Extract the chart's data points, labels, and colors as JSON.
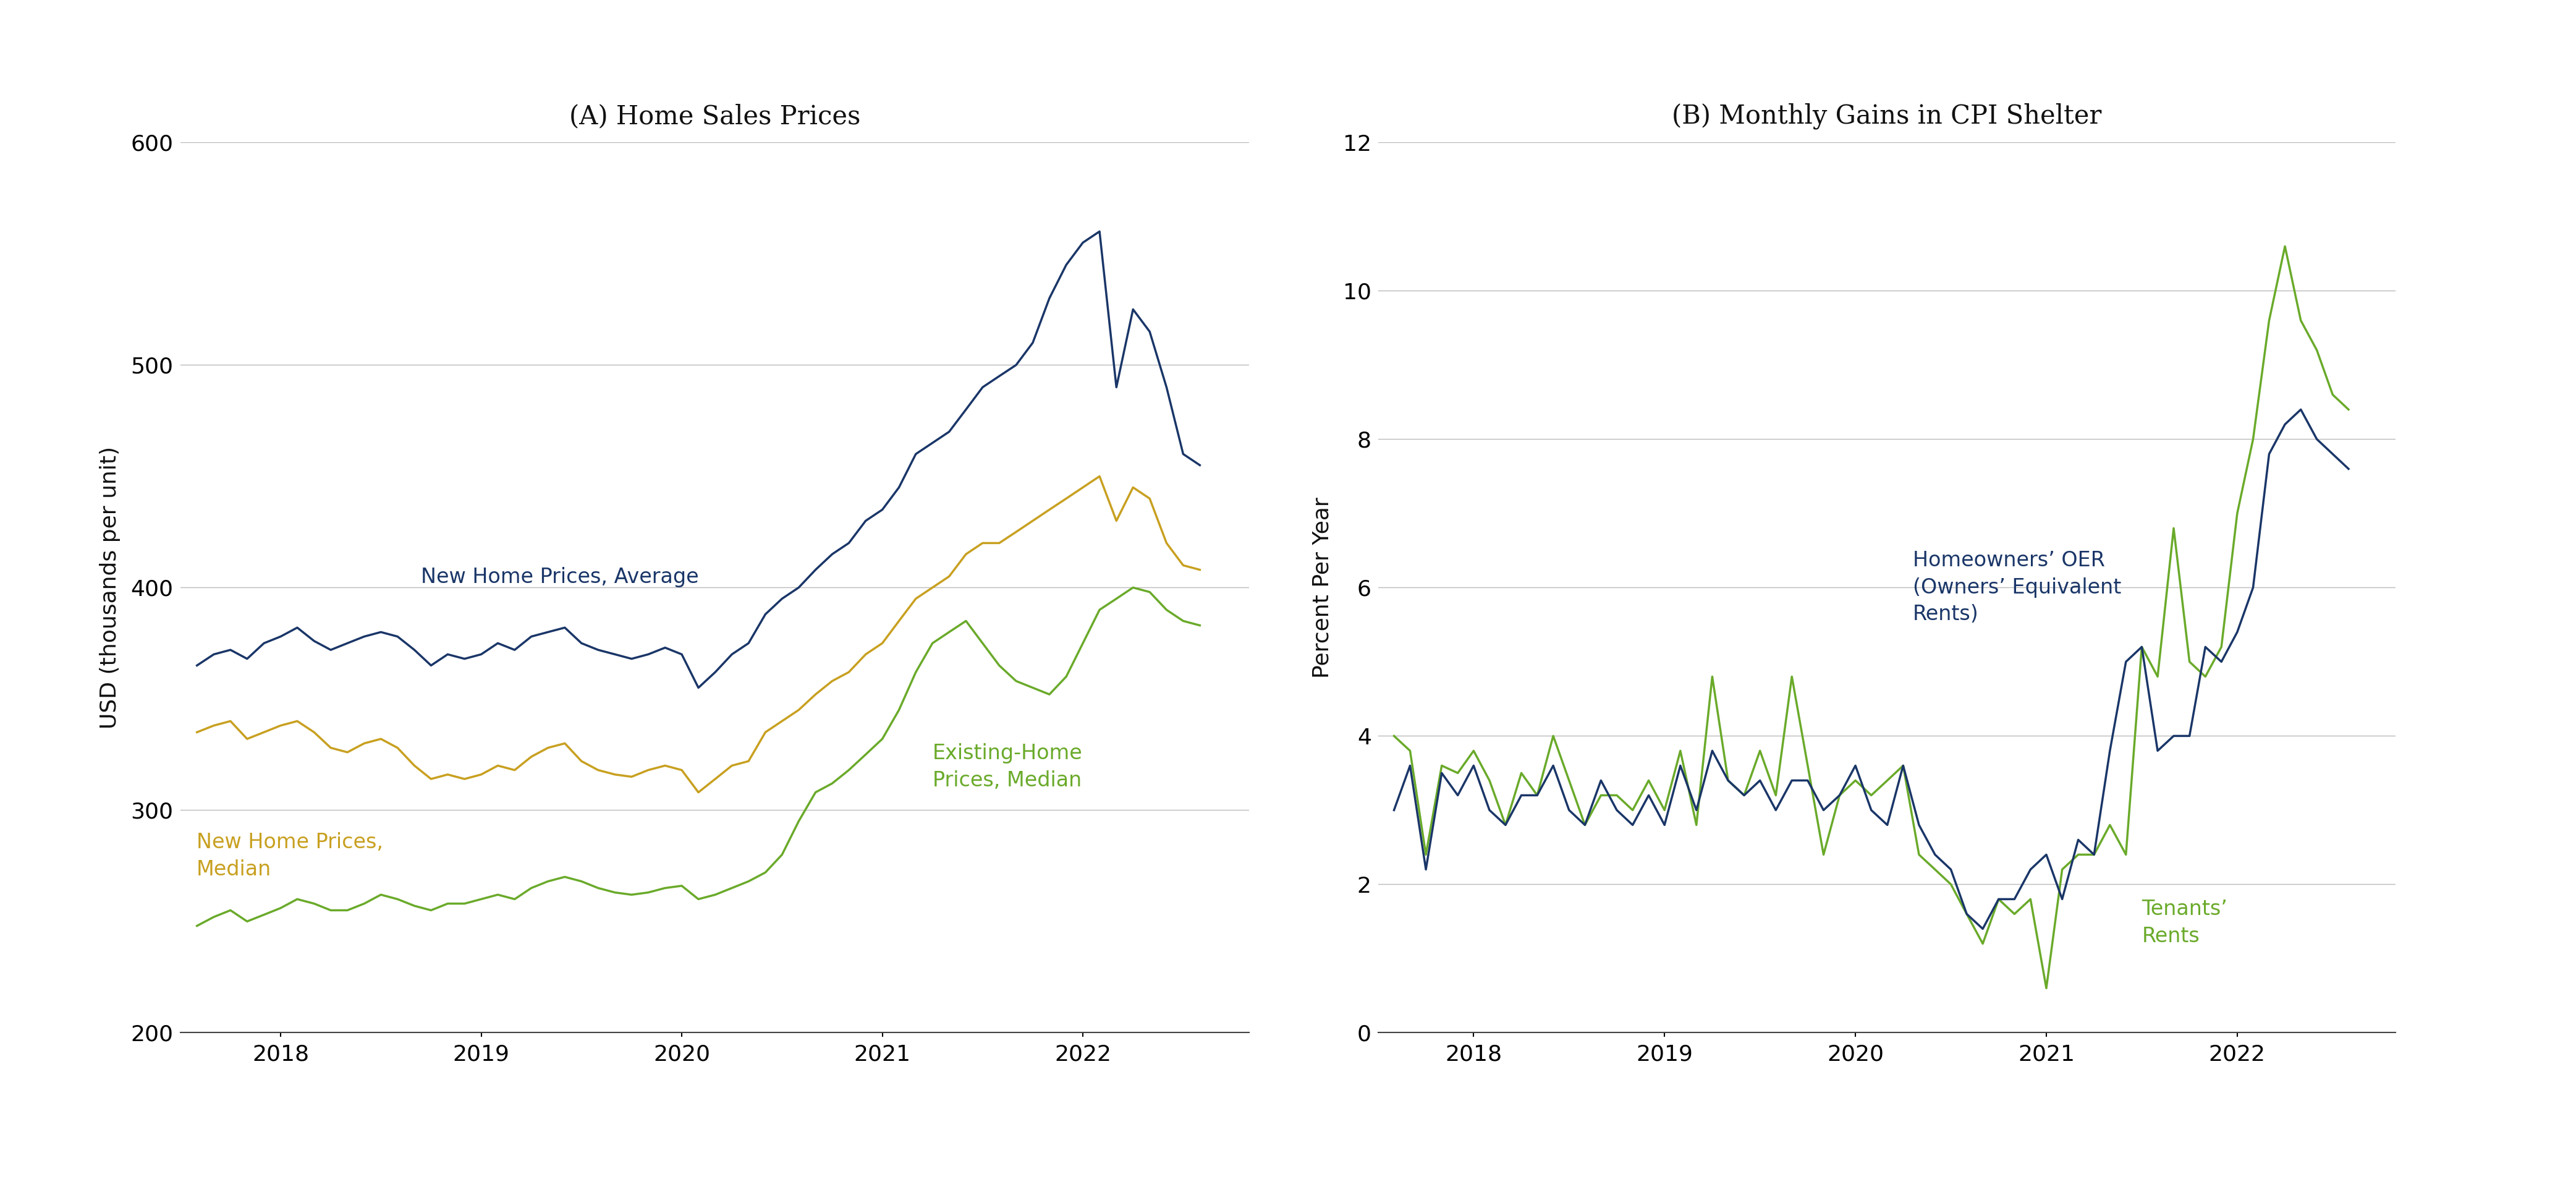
{
  "title_a": "(A) Home Sales Prices",
  "title_b": "(B) Monthly Gains in CPI Shelter",
  "ylabel_a": "USD (thousands per unit)",
  "ylabel_b": "Percent Per Year",
  "bg_color": "#ffffff",
  "divider_color": "#ddeef8",
  "new_avg_color": "#1a3668",
  "new_med_color": "#c8a020",
  "exist_med_color": "#6aaa2a",
  "oer_color": "#1a3668",
  "tenants_color": "#6aaa2a",
  "new_avg_label": "New Home Prices, Average",
  "new_med_label": "New Home Prices,\nMedian",
  "exist_med_label": "Existing-Home\nPrices, Median",
  "oer_label": "Homeowners’ OER\n(Owners’ Equivalent\nRents)",
  "tenants_label": "Tenants’\nRents",
  "xlim_a": [
    2017.5,
    2022.83
  ],
  "ylim_a": [
    200,
    600
  ],
  "yticks_a": [
    200,
    300,
    400,
    500,
    600
  ],
  "xticks_a": [
    2018,
    2019,
    2020,
    2021,
    2022
  ],
  "xlim_b": [
    2017.5,
    2022.83
  ],
  "ylim_b": [
    0,
    12
  ],
  "yticks_b": [
    0,
    2,
    4,
    6,
    8,
    10,
    12
  ],
  "xticks_b": [
    2018,
    2019,
    2020,
    2021,
    2022
  ],
  "new_avg_x": [
    2017.583,
    2017.667,
    2017.75,
    2017.833,
    2017.917,
    2018.0,
    2018.083,
    2018.167,
    2018.25,
    2018.333,
    2018.417,
    2018.5,
    2018.583,
    2018.667,
    2018.75,
    2018.833,
    2018.917,
    2019.0,
    2019.083,
    2019.167,
    2019.25,
    2019.333,
    2019.417,
    2019.5,
    2019.583,
    2019.667,
    2019.75,
    2019.833,
    2019.917,
    2020.0,
    2020.083,
    2020.167,
    2020.25,
    2020.333,
    2020.417,
    2020.5,
    2020.583,
    2020.667,
    2020.75,
    2020.833,
    2020.917,
    2021.0,
    2021.083,
    2021.167,
    2021.25,
    2021.333,
    2021.417,
    2021.5,
    2021.583,
    2021.667,
    2021.75,
    2021.833,
    2021.917,
    2022.0,
    2022.083,
    2022.167,
    2022.25,
    2022.333,
    2022.417,
    2022.5,
    2022.583
  ],
  "new_avg_y": [
    365,
    370,
    372,
    368,
    375,
    378,
    382,
    376,
    372,
    375,
    378,
    380,
    378,
    372,
    365,
    370,
    368,
    370,
    375,
    372,
    378,
    380,
    382,
    375,
    372,
    370,
    368,
    370,
    373,
    370,
    355,
    362,
    370,
    375,
    388,
    395,
    400,
    408,
    415,
    420,
    430,
    435,
    445,
    460,
    465,
    470,
    480,
    490,
    495,
    500,
    510,
    530,
    545,
    555,
    560,
    490,
    525,
    515,
    490,
    460,
    455
  ],
  "new_med_x": [
    2017.583,
    2017.667,
    2017.75,
    2017.833,
    2017.917,
    2018.0,
    2018.083,
    2018.167,
    2018.25,
    2018.333,
    2018.417,
    2018.5,
    2018.583,
    2018.667,
    2018.75,
    2018.833,
    2018.917,
    2019.0,
    2019.083,
    2019.167,
    2019.25,
    2019.333,
    2019.417,
    2019.5,
    2019.583,
    2019.667,
    2019.75,
    2019.833,
    2019.917,
    2020.0,
    2020.083,
    2020.167,
    2020.25,
    2020.333,
    2020.417,
    2020.5,
    2020.583,
    2020.667,
    2020.75,
    2020.833,
    2020.917,
    2021.0,
    2021.083,
    2021.167,
    2021.25,
    2021.333,
    2021.417,
    2021.5,
    2021.583,
    2021.667,
    2021.75,
    2021.833,
    2021.917,
    2022.0,
    2022.083,
    2022.167,
    2022.25,
    2022.333,
    2022.417,
    2022.5,
    2022.583
  ],
  "new_med_y": [
    335,
    338,
    340,
    332,
    335,
    338,
    340,
    335,
    328,
    326,
    330,
    332,
    328,
    320,
    314,
    316,
    314,
    316,
    320,
    318,
    324,
    328,
    330,
    322,
    318,
    316,
    315,
    318,
    320,
    318,
    308,
    314,
    320,
    322,
    335,
    340,
    345,
    352,
    358,
    362,
    370,
    375,
    385,
    395,
    400,
    405,
    415,
    420,
    420,
    425,
    430,
    435,
    440,
    445,
    450,
    430,
    445,
    440,
    420,
    410,
    408
  ],
  "exist_med_x": [
    2017.583,
    2017.667,
    2017.75,
    2017.833,
    2017.917,
    2018.0,
    2018.083,
    2018.167,
    2018.25,
    2018.333,
    2018.417,
    2018.5,
    2018.583,
    2018.667,
    2018.75,
    2018.833,
    2018.917,
    2019.0,
    2019.083,
    2019.167,
    2019.25,
    2019.333,
    2019.417,
    2019.5,
    2019.583,
    2019.667,
    2019.75,
    2019.833,
    2019.917,
    2020.0,
    2020.083,
    2020.167,
    2020.25,
    2020.333,
    2020.417,
    2020.5,
    2020.583,
    2020.667,
    2020.75,
    2020.833,
    2020.917,
    2021.0,
    2021.083,
    2021.167,
    2021.25,
    2021.333,
    2021.417,
    2021.5,
    2021.583,
    2021.667,
    2021.75,
    2021.833,
    2021.917,
    2022.0,
    2022.083,
    2022.167,
    2022.25,
    2022.333,
    2022.417,
    2022.5,
    2022.583
  ],
  "exist_med_y": [
    248,
    252,
    255,
    250,
    253,
    256,
    260,
    258,
    255,
    255,
    258,
    262,
    260,
    257,
    255,
    258,
    258,
    260,
    262,
    260,
    265,
    268,
    270,
    268,
    265,
    263,
    262,
    263,
    265,
    266,
    260,
    262,
    265,
    268,
    272,
    280,
    295,
    308,
    312,
    318,
    325,
    332,
    345,
    362,
    375,
    380,
    385,
    375,
    365,
    358,
    355,
    352,
    360,
    375,
    390,
    395,
    400,
    398,
    390,
    385,
    383
  ],
  "oer_x": [
    2017.583,
    2017.667,
    2017.75,
    2017.833,
    2017.917,
    2018.0,
    2018.083,
    2018.167,
    2018.25,
    2018.333,
    2018.417,
    2018.5,
    2018.583,
    2018.667,
    2018.75,
    2018.833,
    2018.917,
    2019.0,
    2019.083,
    2019.167,
    2019.25,
    2019.333,
    2019.417,
    2019.5,
    2019.583,
    2019.667,
    2019.75,
    2019.833,
    2019.917,
    2020.0,
    2020.083,
    2020.167,
    2020.25,
    2020.333,
    2020.417,
    2020.5,
    2020.583,
    2020.667,
    2020.75,
    2020.833,
    2020.917,
    2021.0,
    2021.083,
    2021.167,
    2021.25,
    2021.333,
    2021.417,
    2021.5,
    2021.583,
    2021.667,
    2021.75,
    2021.833,
    2021.917,
    2022.0,
    2022.083,
    2022.167,
    2022.25,
    2022.333,
    2022.417,
    2022.5,
    2022.583
  ],
  "oer_y": [
    3.0,
    3.6,
    2.2,
    3.5,
    3.2,
    3.6,
    3.0,
    2.8,
    3.2,
    3.2,
    3.6,
    3.0,
    2.8,
    3.4,
    3.0,
    2.8,
    3.2,
    2.8,
    3.6,
    3.0,
    3.8,
    3.4,
    3.2,
    3.4,
    3.0,
    3.4,
    3.4,
    3.0,
    3.2,
    3.6,
    3.0,
    2.8,
    3.6,
    2.8,
    2.4,
    2.2,
    1.6,
    1.4,
    1.8,
    1.8,
    2.2,
    2.4,
    1.8,
    2.6,
    2.4,
    3.8,
    5.0,
    5.2,
    3.8,
    4.0,
    4.0,
    5.2,
    5.0,
    5.4,
    6.0,
    7.8,
    8.2,
    8.4,
    8.0,
    7.8,
    7.6
  ],
  "tenants_x": [
    2017.583,
    2017.667,
    2017.75,
    2017.833,
    2017.917,
    2018.0,
    2018.083,
    2018.167,
    2018.25,
    2018.333,
    2018.417,
    2018.5,
    2018.583,
    2018.667,
    2018.75,
    2018.833,
    2018.917,
    2019.0,
    2019.083,
    2019.167,
    2019.25,
    2019.333,
    2019.417,
    2019.5,
    2019.583,
    2019.667,
    2019.75,
    2019.833,
    2019.917,
    2020.0,
    2020.083,
    2020.167,
    2020.25,
    2020.333,
    2020.417,
    2020.5,
    2020.583,
    2020.667,
    2020.75,
    2020.833,
    2020.917,
    2021.0,
    2021.083,
    2021.167,
    2021.25,
    2021.333,
    2021.417,
    2021.5,
    2021.583,
    2021.667,
    2021.75,
    2021.833,
    2021.917,
    2022.0,
    2022.083,
    2022.167,
    2022.25,
    2022.333,
    2022.417,
    2022.5,
    2022.583
  ],
  "tenants_y": [
    4.0,
    3.8,
    2.4,
    3.6,
    3.5,
    3.8,
    3.4,
    2.8,
    3.5,
    3.2,
    4.0,
    3.4,
    2.8,
    3.2,
    3.2,
    3.0,
    3.4,
    3.0,
    3.8,
    2.8,
    4.8,
    3.4,
    3.2,
    3.8,
    3.2,
    4.8,
    3.6,
    2.4,
    3.2,
    3.4,
    3.2,
    3.4,
    3.6,
    2.4,
    2.2,
    2.0,
    1.6,
    1.2,
    1.8,
    1.6,
    1.8,
    0.6,
    2.2,
    2.4,
    2.4,
    2.8,
    2.4,
    5.2,
    4.8,
    6.8,
    5.0,
    4.8,
    5.2,
    7.0,
    8.0,
    9.6,
    10.6,
    9.6,
    9.2,
    8.6,
    8.4
  ]
}
